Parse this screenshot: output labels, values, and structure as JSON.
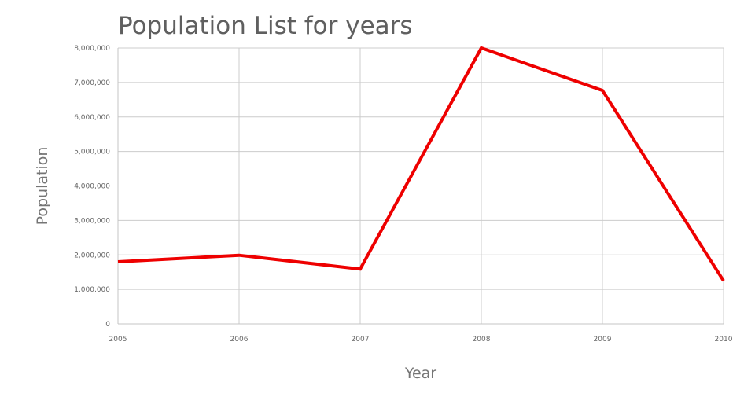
{
  "chart_data": {
    "type": "line",
    "title": "Population List for years",
    "xlabel": "Year",
    "ylabel": "Population",
    "categories": [
      "2005",
      "2006",
      "2007",
      "2008",
      "2009",
      "2010"
    ],
    "series": [
      {
        "values": [
          1800000,
          1990000,
          1590000,
          8000000,
          6770000,
          1250000
        ],
        "color": "#ee0000"
      }
    ],
    "ylim": [
      0,
      8000000
    ],
    "yticks": [
      "0",
      "1,000,000",
      "2,000,000",
      "3,000,000",
      "4,000,000",
      "5,000,000",
      "6,000,000",
      "7,000,000",
      "8,000,000"
    ],
    "grid": true,
    "legend": "none"
  }
}
